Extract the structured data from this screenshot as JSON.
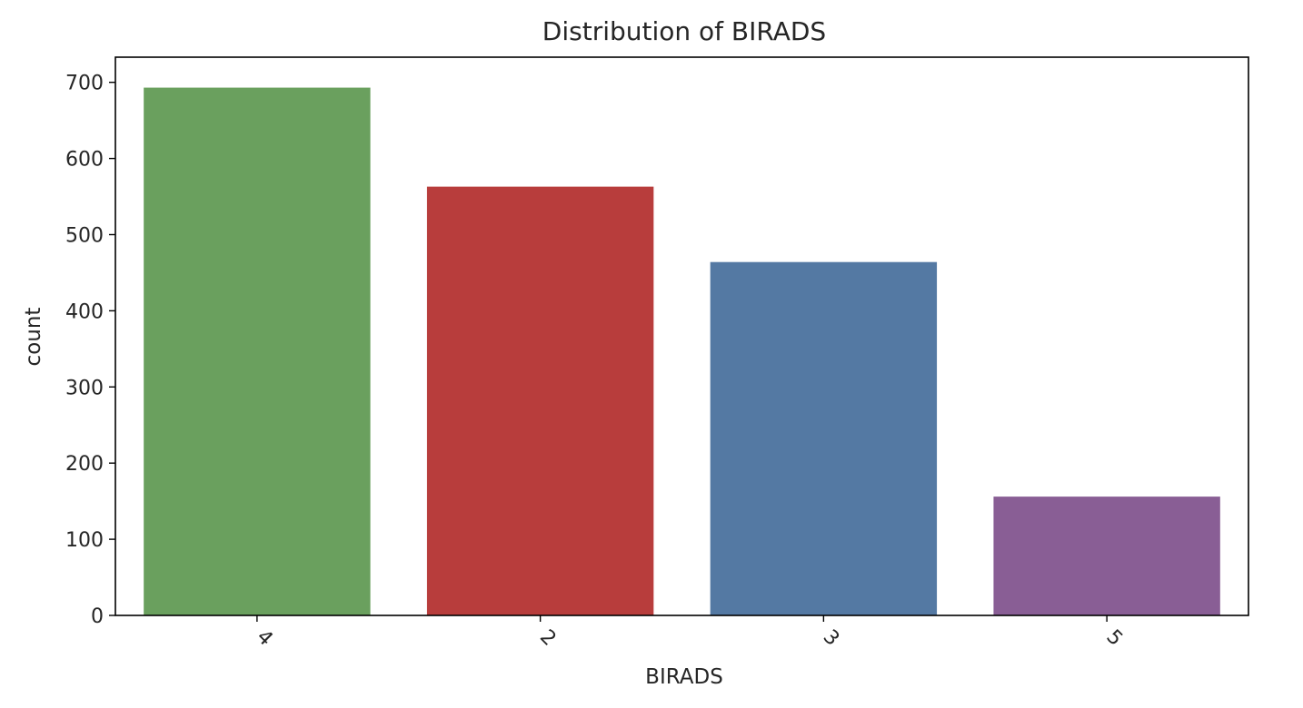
{
  "chart_data": {
    "type": "bar",
    "title": "Distribution of BIRADS",
    "xlabel": "BIRADS",
    "ylabel": "count",
    "categories": [
      "4",
      "2",
      "3",
      "5"
    ],
    "values": [
      693,
      563,
      464,
      156
    ],
    "colors": [
      "#6aa05e",
      "#b83d3c",
      "#5479a3",
      "#895e95"
    ],
    "ylim": [
      0,
      733
    ],
    "yticks": [
      0,
      100,
      200,
      300,
      400,
      500,
      600,
      700
    ],
    "xtick_rotation": "45 degrees",
    "grid": false,
    "legend": "none"
  }
}
